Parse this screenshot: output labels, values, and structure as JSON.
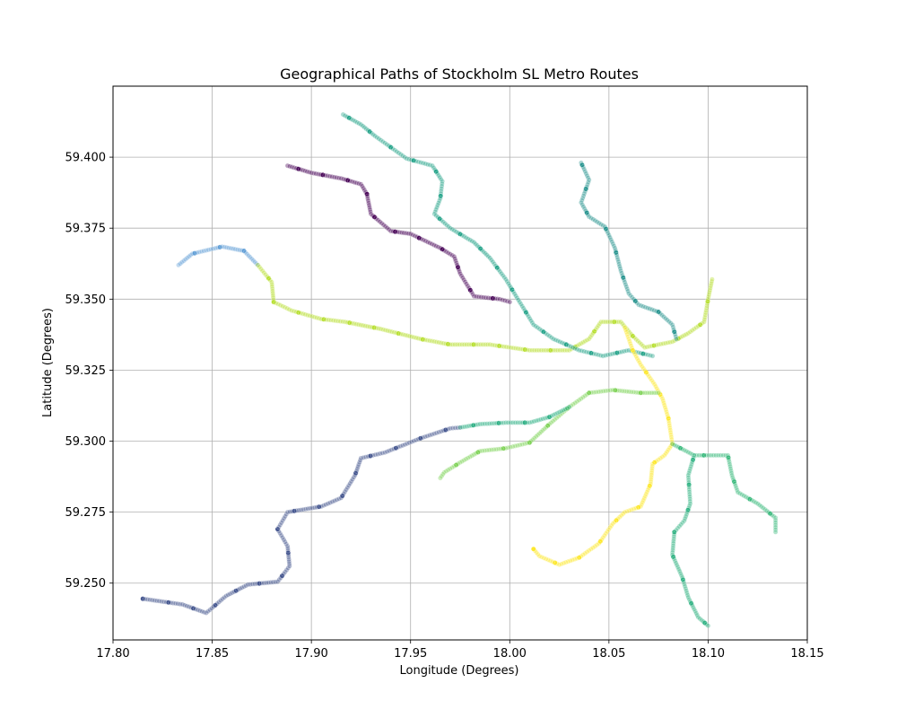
{
  "chart_data": {
    "type": "scatter",
    "title": "Geographical Paths of Stockholm SL Metro Routes",
    "xlabel": "Longitude (Degrees)",
    "ylabel": "Latitude (Degrees)",
    "xlim": [
      17.8,
      18.15
    ],
    "ylim": [
      59.23,
      59.425
    ],
    "xticks": [
      "17.80",
      "17.85",
      "17.90",
      "17.95",
      "18.00",
      "18.05",
      "18.10",
      "18.15"
    ],
    "yticks": [
      "59.250",
      "59.275",
      "59.300",
      "59.325",
      "59.350",
      "59.375",
      "59.400"
    ],
    "grid": true,
    "colormap": "viridis",
    "series": [
      {
        "color": "#3c4e8a",
        "points": [
          [
            17.815,
            59.2445
          ],
          [
            17.835,
            59.2425
          ],
          [
            17.847,
            59.2395
          ],
          [
            17.857,
            59.2455
          ],
          [
            17.868,
            59.2495
          ],
          [
            17.883,
            59.2505
          ],
          [
            17.889,
            59.256
          ],
          [
            17.888,
            59.263
          ],
          [
            17.883,
            59.269
          ],
          [
            17.888,
            59.275
          ],
          [
            17.905,
            59.277
          ],
          [
            17.915,
            59.28
          ],
          [
            17.922,
            59.288
          ],
          [
            17.925,
            59.294
          ],
          [
            17.937,
            59.296
          ],
          [
            17.955,
            59.301
          ],
          [
            17.97,
            59.3045
          ],
          [
            17.975,
            59.3048
          ]
        ]
      },
      {
        "color": "#5b9bd5",
        "points": [
          [
            17.833,
            59.362
          ],
          [
            17.84,
            59.366
          ],
          [
            17.855,
            59.3685
          ],
          [
            17.866,
            59.367
          ],
          [
            17.873,
            59.362
          ]
        ]
      },
      {
        "color": "#b5de2b",
        "points": [
          [
            17.873,
            59.362
          ],
          [
            17.88,
            59.356
          ],
          [
            17.881,
            59.349
          ],
          [
            17.89,
            59.346
          ],
          [
            17.905,
            59.343
          ],
          [
            17.917,
            59.342
          ],
          [
            17.935,
            59.3395
          ],
          [
            17.955,
            59.336
          ],
          [
            17.97,
            59.334
          ],
          [
            17.99,
            59.334
          ],
          [
            18.01,
            59.332
          ],
          [
            18.03,
            59.332
          ],
          [
            18.04,
            59.336
          ],
          [
            18.046,
            59.342
          ],
          [
            18.056,
            59.342
          ],
          [
            18.062,
            59.337
          ],
          [
            18.068,
            59.333
          ],
          [
            18.082,
            59.335
          ],
          [
            18.09,
            59.338
          ],
          [
            18.098,
            59.342
          ],
          [
            18.1,
            59.35
          ],
          [
            18.102,
            59.357
          ]
        ]
      },
      {
        "color": "#440154",
        "points": [
          [
            17.888,
            59.397
          ],
          [
            17.9,
            59.3945
          ],
          [
            17.915,
            59.3925
          ],
          [
            17.925,
            59.3905
          ],
          [
            17.928,
            59.387
          ],
          [
            17.93,
            59.38
          ],
          [
            17.94,
            59.374
          ],
          [
            17.95,
            59.373
          ],
          [
            17.965,
            59.368
          ],
          [
            17.972,
            59.365
          ],
          [
            17.975,
            59.359
          ],
          [
            17.982,
            59.351
          ],
          [
            17.995,
            59.35
          ],
          [
            18.0,
            59.349
          ]
        ]
      },
      {
        "color": "#1fa187",
        "points": [
          [
            17.916,
            59.415
          ],
          [
            17.925,
            59.4115
          ],
          [
            17.932,
            59.4075
          ],
          [
            17.941,
            59.403
          ],
          [
            17.948,
            59.3995
          ],
          [
            17.961,
            59.397
          ],
          [
            17.966,
            59.3915
          ],
          [
            17.965,
            59.3855
          ],
          [
            17.962,
            59.38
          ],
          [
            17.97,
            59.375
          ],
          [
            17.982,
            59.37
          ],
          [
            17.99,
            59.3645
          ],
          [
            17.998,
            59.357
          ],
          [
            18.005,
            59.349
          ],
          [
            18.012,
            59.341
          ],
          [
            18.022,
            59.336
          ],
          [
            18.035,
            59.332
          ],
          [
            18.047,
            59.33
          ],
          [
            18.06,
            59.332
          ],
          [
            18.072,
            59.33
          ]
        ]
      },
      {
        "color": "#21918c",
        "points": [
          [
            18.036,
            59.398
          ],
          [
            18.04,
            59.392
          ],
          [
            18.036,
            59.384
          ],
          [
            18.04,
            59.379
          ],
          [
            18.048,
            59.3755
          ],
          [
            18.053,
            59.368
          ],
          [
            18.056,
            59.36
          ],
          [
            18.06,
            59.352
          ],
          [
            18.065,
            59.348
          ],
          [
            18.075,
            59.3455
          ],
          [
            18.082,
            59.341
          ],
          [
            18.084,
            59.336
          ]
        ]
      },
      {
        "color": "#fde725",
        "points": [
          [
            18.058,
            59.34
          ],
          [
            18.062,
            59.332
          ],
          [
            18.066,
            59.327
          ],
          [
            18.073,
            59.32
          ],
          [
            18.077,
            59.315
          ],
          [
            18.08,
            59.308
          ],
          [
            18.082,
            59.299
          ],
          [
            18.078,
            59.295
          ],
          [
            18.072,
            59.292
          ],
          [
            18.071,
            59.285
          ],
          [
            18.066,
            59.277
          ],
          [
            18.058,
            59.275
          ],
          [
            18.052,
            59.271
          ],
          [
            18.045,
            59.264
          ],
          [
            18.035,
            59.259
          ],
          [
            18.025,
            59.2565
          ],
          [
            18.015,
            59.2595
          ],
          [
            18.012,
            59.262
          ]
        ]
      },
      {
        "color": "#7ad151",
        "points": [
          [
            18.075,
            59.317
          ],
          [
            18.066,
            59.317
          ],
          [
            18.052,
            59.318
          ],
          [
            18.04,
            59.317
          ],
          [
            18.03,
            59.312
          ],
          [
            18.02,
            59.306
          ],
          [
            18.01,
            59.2995
          ],
          [
            17.998,
            59.2975
          ],
          [
            17.985,
            59.2965
          ],
          [
            17.975,
            59.2925
          ],
          [
            17.967,
            59.289
          ],
          [
            17.965,
            59.287
          ]
        ]
      },
      {
        "color": "#27ad81",
        "points": [
          [
            17.975,
            59.3048
          ],
          [
            17.985,
            59.306
          ],
          [
            17.998,
            59.3065
          ],
          [
            18.01,
            59.3065
          ],
          [
            18.02,
            59.3085
          ],
          [
            18.03,
            59.312
          ]
        ]
      },
      {
        "color": "#35b779",
        "points": [
          [
            18.082,
            59.299
          ],
          [
            18.093,
            59.295
          ],
          [
            18.11,
            59.295
          ],
          [
            18.112,
            59.288
          ],
          [
            18.115,
            59.282
          ],
          [
            18.125,
            59.278
          ],
          [
            18.134,
            59.273
          ],
          [
            18.134,
            59.268
          ]
        ]
      },
      {
        "color": "#2ab07f",
        "points": [
          [
            18.093,
            59.295
          ],
          [
            18.09,
            59.288
          ],
          [
            18.091,
            59.278
          ],
          [
            18.088,
            59.272
          ],
          [
            18.083,
            59.268
          ],
          [
            18.082,
            59.26
          ],
          [
            18.087,
            59.252
          ],
          [
            18.09,
            59.245
          ],
          [
            18.095,
            59.238
          ],
          [
            18.1,
            59.235
          ]
        ]
      }
    ]
  }
}
